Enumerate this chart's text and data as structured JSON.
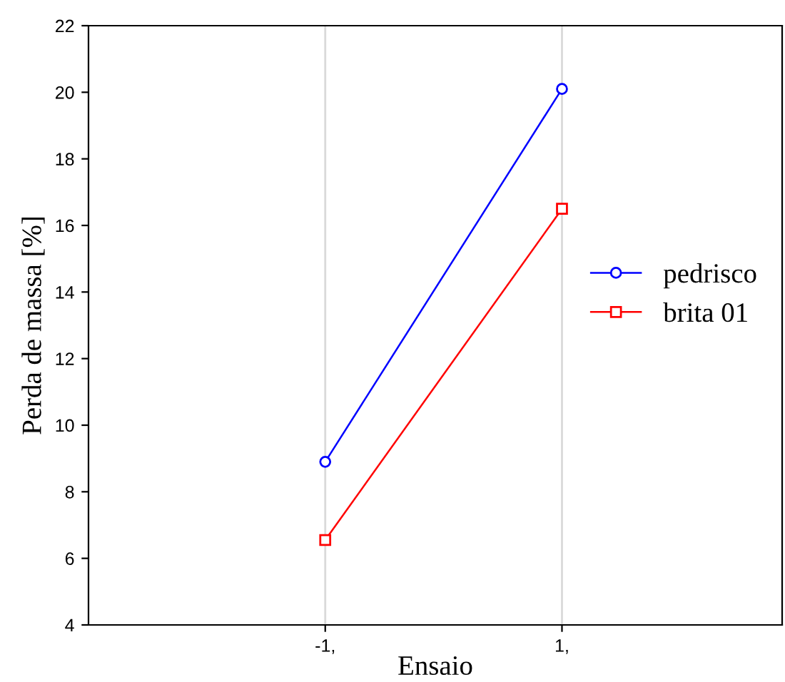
{
  "chart_data": {
    "type": "line",
    "xlabel": "Ensaio",
    "ylabel": "Perda de massa [%]",
    "x": [
      -1,
      1
    ],
    "series": [
      {
        "name": "pedrisco",
        "color": "#0000ff",
        "marker": "circle",
        "values": [
          8.9,
          20.1
        ]
      },
      {
        "name": "brita 01",
        "color": "#ff0000",
        "marker": "square",
        "values": [
          6.55,
          16.5
        ]
      }
    ],
    "xlim": [
      -3,
      2.86
    ],
    "xticks": [
      {
        "value": -1,
        "label": "-1,"
      },
      {
        "value": 1,
        "label": "1,"
      }
    ],
    "ylim": [
      4,
      22
    ],
    "yticks": [
      4,
      6,
      8,
      10,
      12,
      14,
      16,
      18,
      20,
      22
    ],
    "grid": "x",
    "legend": "right",
    "line_style": "solid"
  }
}
